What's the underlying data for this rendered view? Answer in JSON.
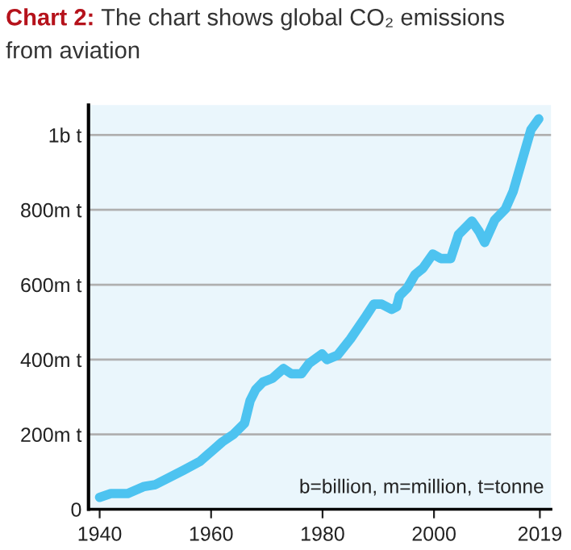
{
  "chart_data": {
    "type": "line",
    "title": "Chart 2: The chart shows global CO₂ emissions from aviation",
    "x": [
      1940,
      1942,
      1945,
      1948,
      1950,
      1955,
      1958,
      1960,
      1962,
      1964,
      1966,
      1967,
      1968,
      1969.3,
      1971,
      1973,
      1974.4,
      1976.2,
      1977.6,
      1979.9,
      1980.8,
      1982.7,
      1985,
      1987.8,
      1989.2,
      1990.6,
      1992.4,
      1993.3,
      1993.8,
      1995.2,
      1996.6,
      1998,
      1999.8,
      2001.2,
      2003,
      2004.4,
      2006.8,
      2008.1,
      2009.1,
      2010.9,
      2012.8,
      2014.2,
      2016,
      2017.4,
      2018.8
    ],
    "series": [
      {
        "color": "#4dc3f0",
        "values": [
          32000000,
          42000000,
          42000000,
          61000000,
          66000000,
          104000000,
          128000000,
          154000000,
          180000000,
          200000000,
          230000000,
          290000000,
          320000000,
          340000000,
          350000000,
          376000000,
          362000000,
          362000000,
          390000000,
          415000000,
          400000000,
          412000000,
          455000000,
          516000000,
          548000000,
          548000000,
          534000000,
          541000000,
          570000000,
          591000000,
          627000000,
          644000000,
          682000000,
          670000000,
          670000000,
          734000000,
          770000000,
          742000000,
          713000000,
          773000000,
          802000000,
          849000000,
          942000000,
          1014000000,
          1043000000
        ]
      }
    ],
    "xlim": [
      1938,
      2021
    ],
    "xticks": [
      1940,
      1960,
      1980,
      2000,
      2019
    ],
    "ylim": [
      0,
      1080000000
    ],
    "yticks": [
      0,
      {
        "value": 200000000,
        "label": "200m t"
      },
      {
        "value": 400000000,
        "label": "400m t"
      },
      {
        "value": 600000000,
        "label": "600m t"
      },
      {
        "value": 800000000,
        "label": "800m t"
      },
      {
        "value": 1000000000,
        "label": "1b t"
      }
    ],
    "grid": "y",
    "marker": "none",
    "line_style": "solid",
    "legend": false,
    "annotations": [
      "b=billion, m=million, t=tonne"
    ]
  }
}
